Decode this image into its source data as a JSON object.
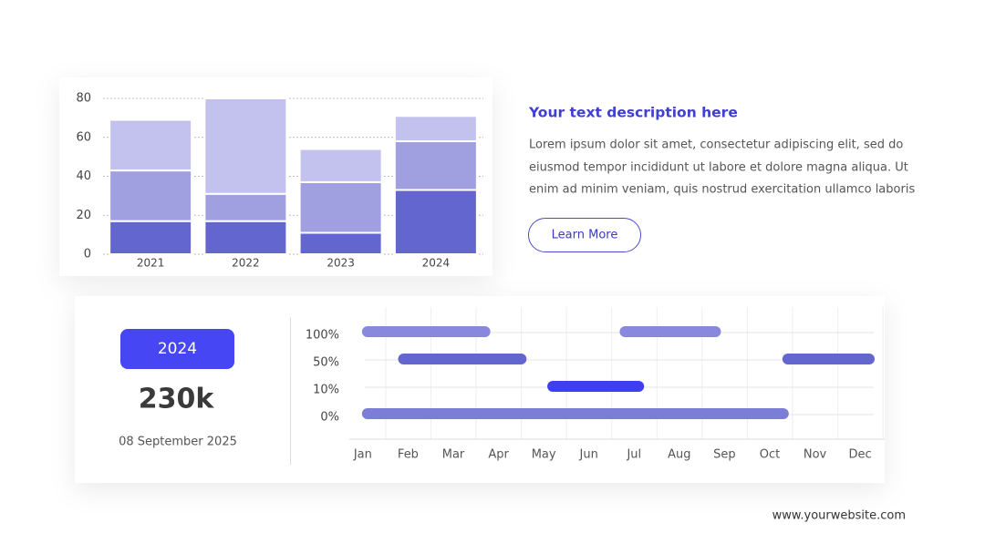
{
  "chart_data": [
    {
      "type": "stacked-bar",
      "categories": [
        "2021",
        "2022",
        "2023",
        "2024"
      ],
      "series": [
        {
          "color": "#6466d0",
          "values": [
            17,
            17,
            11,
            33
          ]
        },
        {
          "color": "#a09fe0",
          "values": [
            26,
            14,
            26,
            25
          ]
        },
        {
          "color": "#c3c2ee",
          "values": [
            26,
            49,
            17,
            13
          ]
        }
      ],
      "ylim": [
        0,
        80
      ],
      "yticks": [
        0,
        20,
        40,
        60,
        80
      ],
      "grid": true
    },
    {
      "type": "gantt",
      "rows": [
        {
          "label": "100%",
          "color": "#8888dd",
          "bars": [
            {
              "start": 0,
              "end": 2.8
            },
            {
              "start": 5.7,
              "end": 7.9
            }
          ]
        },
        {
          "label": "50%",
          "color": "#6466d0",
          "bars": [
            {
              "start": 0.8,
              "end": 3.6
            },
            {
              "start": 9.3,
              "end": 11.3
            }
          ]
        },
        {
          "label": "10%",
          "color": "#3d3ff0",
          "bars": [
            {
              "start": 4.1,
              "end": 6.2
            }
          ]
        },
        {
          "label": "0%",
          "color": "#7b7dd6",
          "bars": [
            {
              "start": 0,
              "end": 9.4
            }
          ]
        }
      ],
      "xlim": [
        -0.3,
        11.3
      ],
      "xticks": [
        {
          "value": 0,
          "label": "Jan"
        },
        {
          "value": 1,
          "label": "Feb"
        },
        {
          "value": 2,
          "label": "Mar"
        },
        {
          "value": 3,
          "label": "Apr"
        },
        {
          "value": 4,
          "label": "May"
        },
        {
          "value": 5,
          "label": "Jun"
        },
        {
          "value": 6,
          "label": "Jul"
        },
        {
          "value": 7,
          "label": "Aug"
        },
        {
          "value": 8,
          "label": "Sep"
        },
        {
          "value": 9,
          "label": "Oct"
        },
        {
          "value": 10,
          "label": "Nov"
        },
        {
          "value": 11,
          "label": "Dec"
        }
      ],
      "grid": true
    }
  ],
  "description": {
    "title": "Your text description here",
    "lines": [
      "Lorem ipsum dolor sit amet, consectetur adipiscing elit, sed do",
      "eiusmod tempor incididunt ut labore et dolore magna aliqua. Ut",
      "enim ad minim veniam, quis nostrud exercitation ullamco laboris"
    ],
    "button": "Learn More"
  },
  "stat": {
    "badge": "2024",
    "value": "230k",
    "date": "08 September 2025"
  },
  "footer": "www.yourwebsite.com"
}
